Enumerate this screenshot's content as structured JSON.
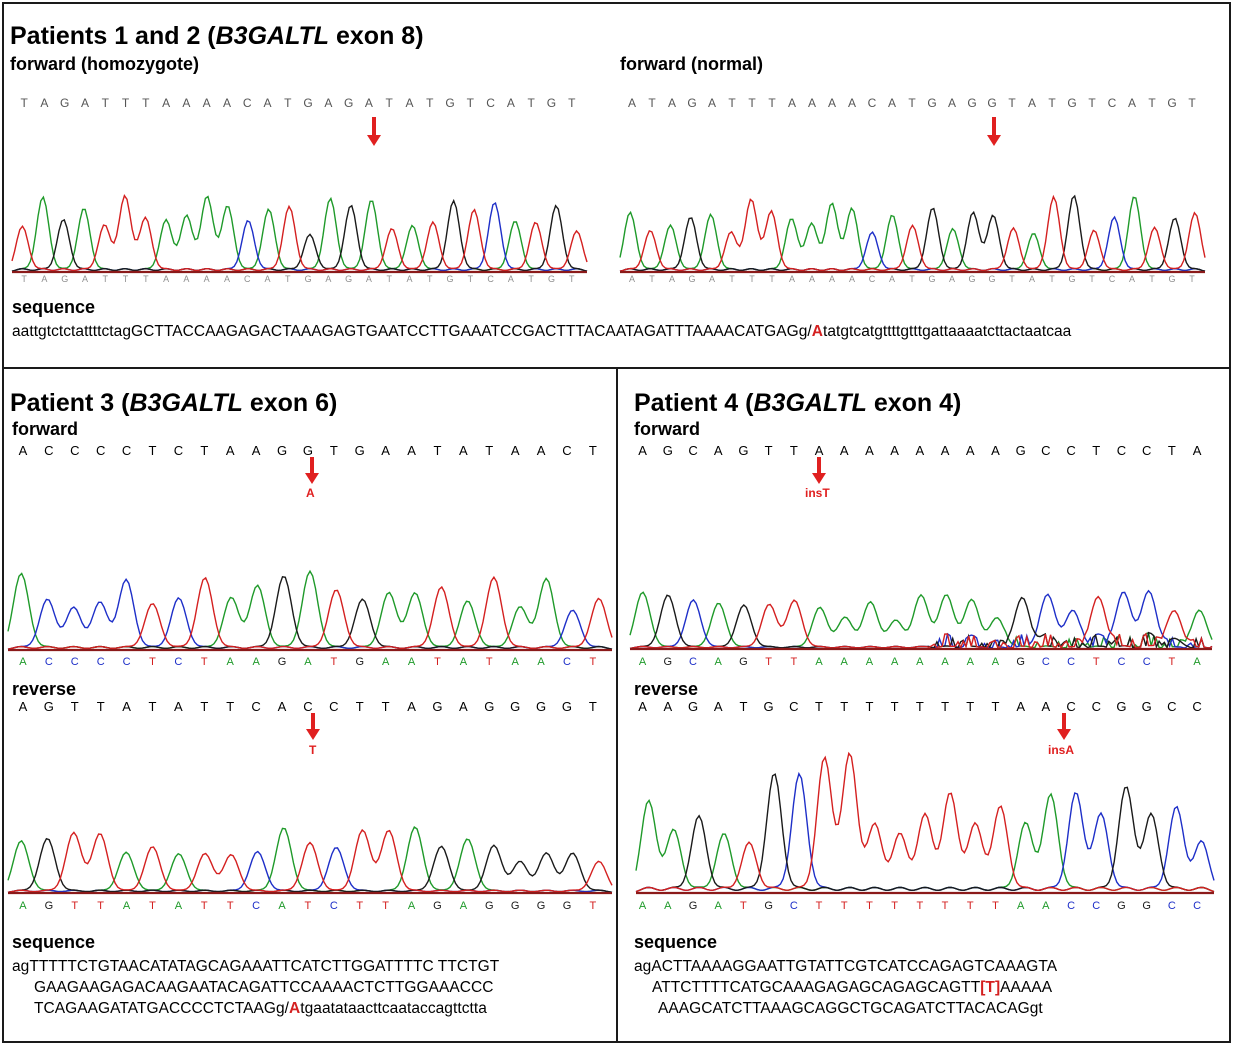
{
  "panel12": {
    "title_prefix": "Patients 1 and 2 (",
    "gene": "B3GALTL",
    "title_suffix": " exon 8)",
    "left_label": "forward (homozygote)",
    "right_label": "forward (normal)",
    "left_bases": "TAGATTTAAAACATGAGATATGTCATGT",
    "right_bases": "ATAGATTTAAAACATGAGGTATGTCATGT",
    "sequence_label": "sequence",
    "sequence_before": "aattgtctctattttctagGCTTACCAAGAGACTAAAGAGTGAATCCTTGAAATCCGACTTTACAATAGATTTAAAACATGAGg/",
    "sequence_mut": "A",
    "sequence_after": "tatgtcatgttttgtttgattaaaatcttactaatcaa"
  },
  "panel3": {
    "title_prefix": "Patient 3 (",
    "gene": "B3GALTL",
    "title_suffix": " exon 6)",
    "forward_label": "forward",
    "forward_bases": "ACCCCTCTAAGGTGAATATAACT",
    "forward_mut": "A",
    "forward_trace_bases": "ACCCCTCTAAGATGAATATAACT",
    "reverse_label": "reverse",
    "reverse_bases": "AGTTATATTCACCTTAGAGGGGT",
    "reverse_mut": "T",
    "reverse_trace_bases": "AGTTATATTCATCTTAGAGGGGT",
    "sequence_label": "sequence",
    "seq_line1": "agTTTTTCTGTAACATATAGCAGAAATTCATCTTGGATTTTC TTCTGT",
    "seq_line2": "GAAGAAGAGACAAGAATACAGATTCCAAAACTCTTGGAAACCC",
    "seq_line3_before": "TCAGAAGATATGACCCCTCTAAGg/",
    "seq_line3_mut": "A",
    "seq_line3_after": "tgaatataacttcaataccagttctta"
  },
  "panel4": {
    "title_prefix": "Patient 4 (",
    "gene": "B3GALTL",
    "title_suffix": " exon 4)",
    "forward_label": "forward",
    "forward_bases": "AGCAGTTAAAAAAAAGCCTCCTA",
    "forward_mut": "insT",
    "forward_trace_bases": "AGCAGTTAAAAAAAAGCCTCCTA",
    "reverse_label": "reverse",
    "reverse_bases": "AAGATGCTTTTTTTTAACCGGCC",
    "reverse_mut": "insA",
    "reverse_trace_bases": "AAGATGCTTTTTTTTAACCGGCC",
    "sequence_label": "sequence",
    "seq_line1": "agACTTAAAAGGAATTGTATTCGTCATCCAGAGTCAAAGTA",
    "seq_line2_before": "ATTCTTTTCATGCAAAGAGAGCAGAGCAGTT",
    "seq_line2_mut": "[T]",
    "seq_line2_after": "AAAAA",
    "seq_line3": "AAAGCATCTTAAAGCAGGCTGCAGATCTTACACAGgt"
  },
  "colors": {
    "A": "#1f9a2a",
    "C": "#1e2fc8",
    "G": "#1a1a1a",
    "T": "#d42020",
    "arrow": "#e02020",
    "baseline": "#8b1a1a"
  }
}
